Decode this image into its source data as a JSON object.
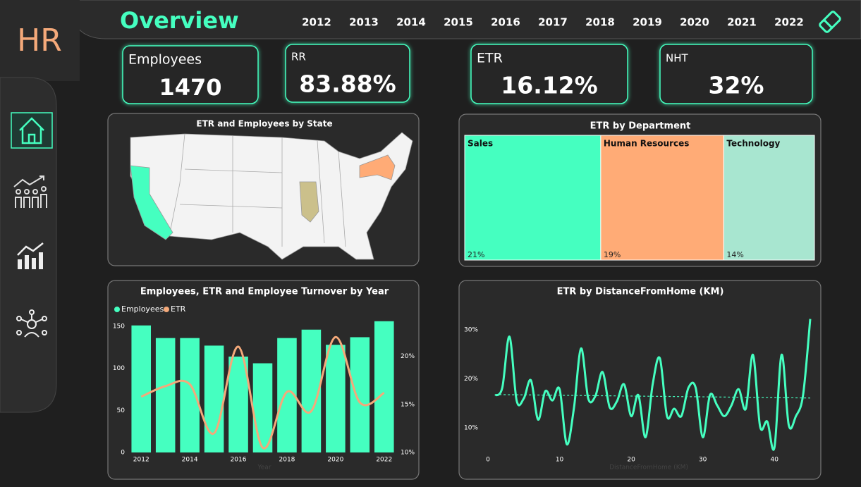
{
  "header": {
    "logo": "HR",
    "title": "Overview",
    "years": [
      "2012",
      "2013",
      "2014",
      "2015",
      "2016",
      "2017",
      "2018",
      "2019",
      "2020",
      "2021",
      "2022"
    ]
  },
  "kpis": [
    {
      "label": "Employees",
      "value": "1470"
    },
    {
      "label": "RR",
      "value": "83.88%"
    },
    {
      "label": "ETR",
      "value": "16.12%"
    },
    {
      "label": "NHT",
      "value": "32%"
    }
  ],
  "map": {
    "title": "ETR and Employees by State"
  },
  "treemap": {
    "type": "treemap",
    "title": "ETR by Department",
    "categories": [
      "Sales",
      "Human Resources",
      "Technology"
    ],
    "values": [
      21,
      19,
      14
    ],
    "value_labels": [
      "21%",
      "19%",
      "14%"
    ],
    "colors": [
      "#45ffc0",
      "#ffab76",
      "#a8e6d0"
    ]
  },
  "year_chart": {
    "type": "bar",
    "title": "Employees, ETR and Employee Turnover by Year",
    "x_label": "Year",
    "categories": [
      "2012",
      null,
      "2014",
      null,
      "2016",
      null,
      "2018",
      null,
      "2020",
      null,
      "2022"
    ],
    "series": [
      {
        "name": "Employees",
        "color": "#45ffc0",
        "values": [
          151,
          136,
          136,
          127,
          114,
          106,
          136,
          146,
          128,
          137,
          156
        ]
      },
      {
        "name": "ETR",
        "color": "#f4a97a",
        "axis": "y2",
        "values": [
          15.8,
          16.9,
          17.1,
          12,
          21,
          10.5,
          16.3,
          14.3,
          22,
          15.2,
          16.2
        ]
      }
    ],
    "ylim": [
      0,
      160
    ],
    "yticks": [
      0,
      50,
      100,
      150
    ],
    "y2lim": [
      10,
      24
    ],
    "y2ticks": [
      {
        "value": 10,
        "label": "10%"
      },
      {
        "value": 15,
        "label": "15%"
      },
      {
        "value": 20,
        "label": "20%"
      }
    ]
  },
  "distance_chart": {
    "type": "line",
    "title": "ETR by DistanceFromHome (KM)",
    "x_label": "DistanceFromHome (KM)",
    "x": [
      1,
      2,
      3,
      4,
      5,
      6,
      7,
      8,
      9,
      10,
      11,
      12,
      13,
      14,
      15,
      16,
      17,
      18,
      19,
      20,
      21,
      22,
      23,
      24,
      25,
      26,
      27,
      28,
      29,
      30,
      31,
      32,
      33,
      34,
      35,
      36,
      37,
      38,
      39,
      40,
      41,
      42,
      43,
      44,
      45
    ],
    "values": [
      16.6,
      18.2,
      28.6,
      15.6,
      16,
      19.7,
      11.7,
      17.5,
      15.6,
      17.9,
      6.7,
      14,
      26.2,
      16,
      16.5,
      21.4,
      14.2,
      15.4,
      18.9,
      12.4,
      16.7,
      8.1,
      18.9,
      24.2,
      12.4,
      13.9,
      12.4,
      18.2,
      18.2,
      8.1,
      16.7,
      14.6,
      12.4,
      14.6,
      17.9,
      13.9,
      24.9,
      10.3,
      11.3,
      6,
      24.9,
      10.6,
      12.4,
      16.7,
      32.2
    ],
    "color": "#45ffc0",
    "trend": [
      16.8,
      16.1
    ],
    "xlim": [
      0,
      45
    ],
    "xticks": [
      0,
      10,
      20,
      30,
      40
    ],
    "ylim": [
      4,
      33
    ],
    "yticks": [
      {
        "value": 10,
        "label": "10%"
      },
      {
        "value": 20,
        "label": "20%"
      },
      {
        "value": 30,
        "label": "30%"
      }
    ]
  }
}
